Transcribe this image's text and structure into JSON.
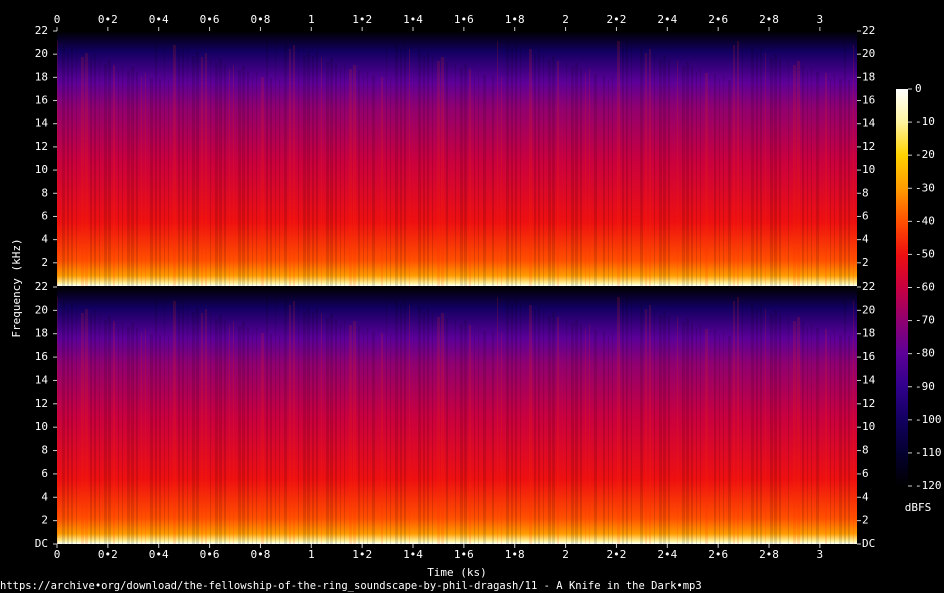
{
  "chart_data": {
    "type": "spectrogram",
    "x_label": "Time (ks)",
    "y_label": "Frequency (kHz)",
    "footer": "https://archive•org/download/the-fellowship-of-the-ring_soundscape-by-phil-dragash/11 - A Knife in the Dark•mp3",
    "xlim": [
      0,
      3.146
    ],
    "xticks": [
      0,
      {
        "value": 0.2,
        "label": "0•2"
      },
      {
        "value": 0.4,
        "label": "0•4"
      },
      {
        "value": 0.6,
        "label": "0•6"
      },
      {
        "value": 0.8,
        "label": "0•8"
      },
      1,
      {
        "value": 1.2,
        "label": "1•2"
      },
      {
        "value": 1.4,
        "label": "1•4"
      },
      {
        "value": 1.6,
        "label": "1•6"
      },
      {
        "value": 1.8,
        "label": "1•8"
      },
      2,
      {
        "value": 2.2,
        "label": "2•2"
      },
      {
        "value": 2.4,
        "label": "2•4"
      },
      {
        "value": 2.6,
        "label": "2•6"
      },
      {
        "value": 2.8,
        "label": "2•8"
      },
      3
    ],
    "channels": [
      {
        "ylim": [
          0,
          22
        ],
        "yticks": [
          2,
          4,
          6,
          8,
          10,
          12,
          14,
          16,
          18,
          20,
          22
        ]
      },
      {
        "ylim": [
          0,
          22
        ],
        "yticks": [
          {
            "value": 0,
            "label": "DC"
          },
          2,
          4,
          6,
          8,
          10,
          12,
          14,
          16,
          18,
          20,
          22
        ]
      }
    ],
    "colorbar": {
      "label": "dBFS",
      "lim": [
        -120,
        0
      ],
      "ticks": [
        0,
        -10,
        -20,
        -30,
        -40,
        -50,
        -60,
        -70,
        -80,
        -90,
        -100,
        -110,
        -120
      ],
      "colors": [
        "#ffffff",
        "#fff4a0",
        "#ffd200",
        "#ff9c00",
        "#ff5000",
        "#ee1010",
        "#c80040",
        "#900070",
        "#5c0098",
        "#30008c",
        "#120060",
        "#040030",
        "#000000"
      ]
    }
  }
}
